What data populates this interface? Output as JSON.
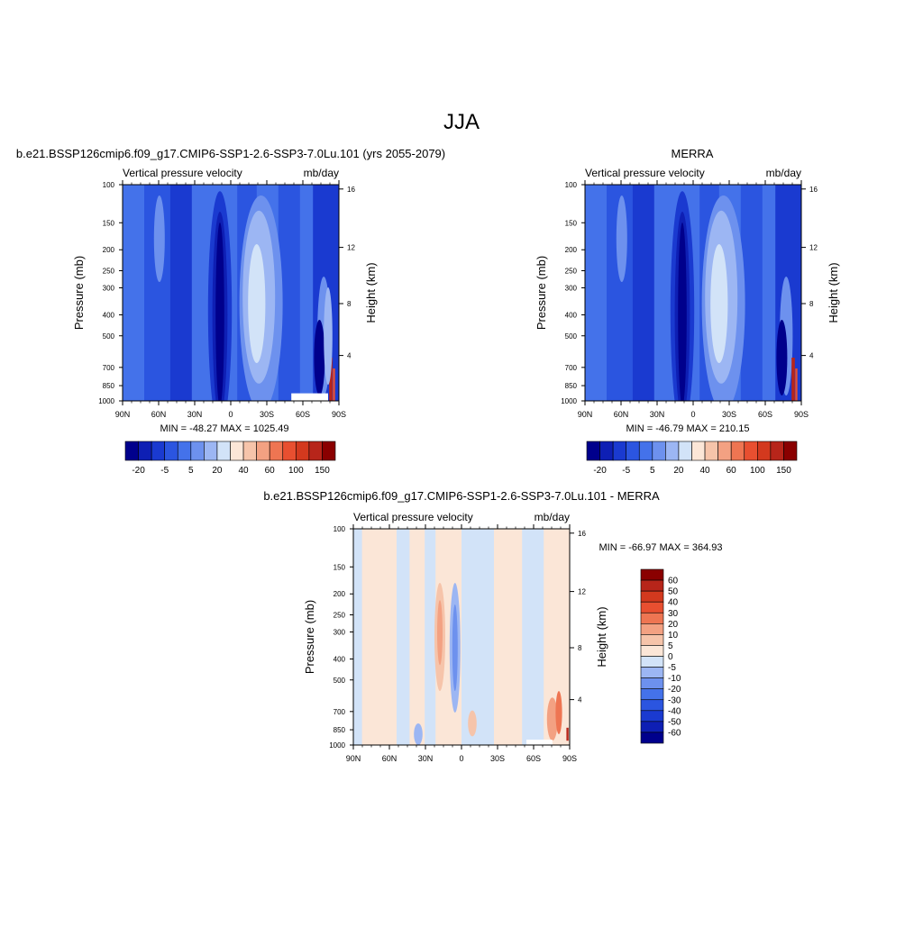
{
  "figure": {
    "title": "JJA",
    "colors": {
      "blue": [
        "#00008c",
        "#0e1fb4",
        "#1a3ad0",
        "#2b55e0",
        "#4472ea",
        "#6d91ee",
        "#9cb6f3",
        "#d2e3f8"
      ],
      "red": [
        "#fbe6d7",
        "#f6c4aa",
        "#f3a182",
        "#ee7552",
        "#e84f30",
        "#d3391e",
        "#b7251a",
        "#8a0000"
      ]
    }
  },
  "panels": [
    {
      "id": "model",
      "title": "b.e21.BSSP126cmip6.f09_g17.CMIP6-SSP1-2.6-SSP3-7.0Lu.101 (yrs 2055-2079)",
      "left_label": "Vertical pressure velocity",
      "right_label": "mb/day",
      "y_axis_label": "Pressure (mb)",
      "y2_axis_label": "Height (km)",
      "stats": "MIN = -48.27  MAX = 1025.49",
      "colorbar_labels": [
        "-20",
        "-5",
        "5",
        "20",
        "40",
        "60",
        "100",
        "150"
      ]
    },
    {
      "id": "obs",
      "title": "MERRA",
      "left_label": "Vertical pressure velocity",
      "right_label": "mb/day",
      "y_axis_label": "Pressure (mb)",
      "y2_axis_label": "Height (km)",
      "stats": "MIN = -46.79  MAX = 210.15",
      "colorbar_labels": [
        "-20",
        "-5",
        "5",
        "20",
        "40",
        "60",
        "100",
        "150"
      ]
    },
    {
      "id": "diff",
      "title": "b.e21.BSSP126cmip6.f09_g17.CMIP6-SSP1-2.6-SSP3-7.0Lu.101 - MERRA",
      "left_label": "Vertical pressure velocity",
      "right_label": "mb/day",
      "y_axis_label": "Pressure (mb)",
      "y2_axis_label": "Height (km)",
      "stats": "MIN = -66.97  MAX = 364.93",
      "colorbar_labels": [
        "60",
        "50",
        "40",
        "30",
        "20",
        "10",
        "5",
        "0",
        "-5",
        "-10",
        "-20",
        "-30",
        "-40",
        "-50",
        "-60"
      ]
    }
  ],
  "chart_data": [
    {
      "type": "heatmap",
      "title": "b.e21.BSSP126cmip6.f09_g17.CMIP6-SSP1-2.6-SSP3-7.0Lu.101 (yrs 2055-2079)",
      "variable": "Vertical pressure velocity",
      "units": "mb/day",
      "x_ticks": [
        "90N",
        "60N",
        "30N",
        "0",
        "30S",
        "60S",
        "90S"
      ],
      "y_ticks": [
        "100",
        "150",
        "200",
        "250",
        "300",
        "400",
        "500",
        "700",
        "850",
        "1000"
      ],
      "y2_ticks": [
        "16",
        "12",
        "8",
        "4"
      ],
      "ylabel": "Pressure (mb)",
      "y2label": "Height (km)",
      "min": -48.27,
      "max": 1025.49,
      "colorbar_levels": [
        -20,
        -5,
        5,
        20,
        40,
        60,
        100,
        150
      ]
    },
    {
      "type": "heatmap",
      "title": "MERRA",
      "variable": "Vertical pressure velocity",
      "units": "mb/day",
      "x_ticks": [
        "90N",
        "60N",
        "30N",
        "0",
        "30S",
        "60S",
        "90S"
      ],
      "y_ticks": [
        "100",
        "150",
        "200",
        "250",
        "300",
        "400",
        "500",
        "700",
        "850",
        "1000"
      ],
      "y2_ticks": [
        "16",
        "12",
        "8",
        "4"
      ],
      "ylabel": "Pressure (mb)",
      "y2label": "Height (km)",
      "min": -46.79,
      "max": 210.15,
      "colorbar_levels": [
        -20,
        -5,
        5,
        20,
        40,
        60,
        100,
        150
      ]
    },
    {
      "type": "heatmap",
      "title": "b.e21.BSSP126cmip6.f09_g17.CMIP6-SSP1-2.6-SSP3-7.0Lu.101 - MERRA",
      "variable": "Vertical pressure velocity",
      "units": "mb/day",
      "x_ticks": [
        "90N",
        "60N",
        "30N",
        "0",
        "30S",
        "60S",
        "90S"
      ],
      "y_ticks": [
        "100",
        "150",
        "200",
        "250",
        "300",
        "400",
        "500",
        "700",
        "850",
        "1000"
      ],
      "y2_ticks": [
        "16",
        "12",
        "8",
        "4"
      ],
      "ylabel": "Pressure (mb)",
      "y2label": "Height (km)",
      "min": -66.97,
      "max": 364.93,
      "colorbar_levels": [
        60,
        50,
        40,
        30,
        20,
        10,
        5,
        0,
        -5,
        -10,
        -20,
        -30,
        -40,
        -50,
        -60
      ]
    }
  ]
}
